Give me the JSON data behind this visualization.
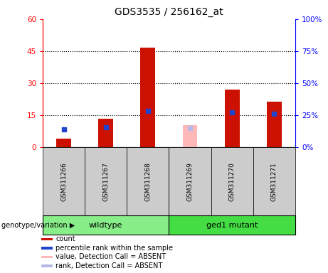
{
  "title": "GDS3535 / 256162_at",
  "samples": [
    "GSM311266",
    "GSM311267",
    "GSM311268",
    "GSM311269",
    "GSM311270",
    "GSM311271"
  ],
  "groups": [
    "wildtype",
    "wildtype",
    "wildtype",
    "ged1 mutant",
    "ged1 mutant",
    "ged1 mutant"
  ],
  "count_values": [
    4.0,
    13.5,
    46.5,
    null,
    27.0,
    21.5
  ],
  "rank_values": [
    14.0,
    15.5,
    28.5,
    null,
    27.5,
    26.5
  ],
  "absent_count_values": [
    null,
    null,
    null,
    10.5,
    null,
    null
  ],
  "absent_rank_values": [
    null,
    null,
    null,
    15.0,
    null,
    null
  ],
  "ylim_left": [
    0,
    60
  ],
  "ylim_right": [
    0,
    100
  ],
  "yticks_left": [
    0,
    15,
    30,
    45,
    60
  ],
  "yticks_right": [
    0,
    25,
    50,
    75,
    100
  ],
  "ytick_labels_left": [
    "0",
    "15",
    "30",
    "45",
    "60"
  ],
  "ytick_labels_right": [
    "0%",
    "25%",
    "50%",
    "75%",
    "100%"
  ],
  "dotted_lines": [
    15,
    30,
    45
  ],
  "bar_color": "#cc1100",
  "rank_color": "#2244cc",
  "absent_bar_color": "#ffb8b8",
  "absent_rank_color": "#b8b8e8",
  "wildtype_color": "#88ee88",
  "mutant_color": "#44dd44",
  "sample_bg_color": "#cccccc",
  "bar_width": 0.35,
  "rank_marker_size": 5,
  "title_fontsize": 10,
  "tick_fontsize": 7.5,
  "sample_fontsize": 6.5,
  "group_fontsize": 8,
  "legend_fontsize": 7,
  "genotype_label": "genotype/variation"
}
